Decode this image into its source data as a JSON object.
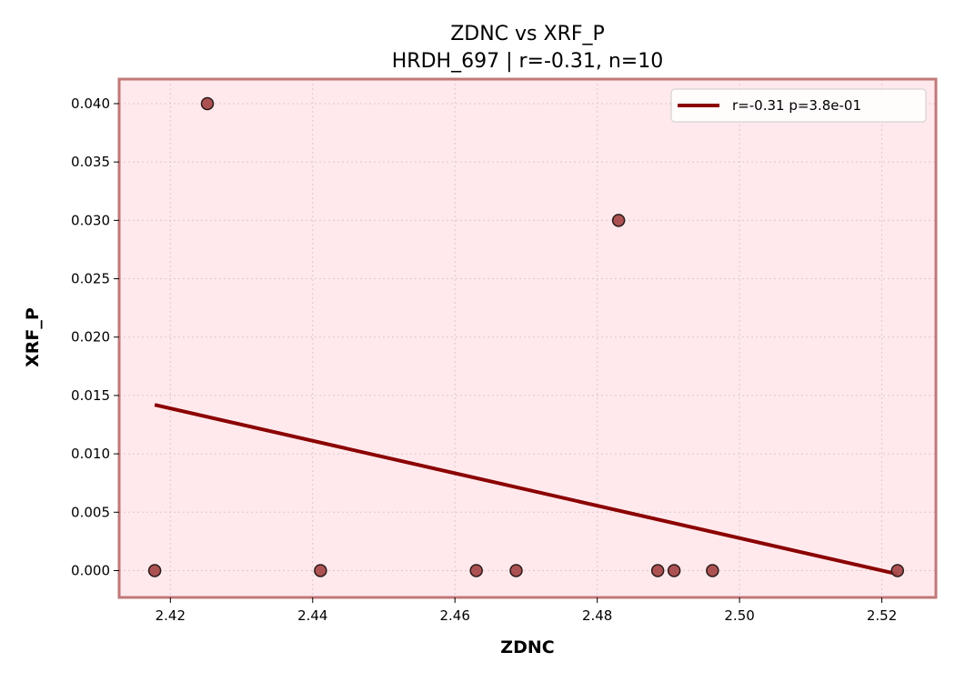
{
  "chart_data": {
    "type": "scatter",
    "title": "ZDNC vs XRF_P",
    "subtitle": "HRDH_697 | r=-0.31, n=10",
    "xlabel": "ZDNC",
    "ylabel": "XRF_P",
    "xlim": [
      2.4128,
      2.5276
    ],
    "ylim": [
      -0.0023,
      0.0421
    ],
    "xticks": [
      2.42,
      2.44,
      2.46,
      2.48,
      2.5,
      2.52
    ],
    "xtick_labels": [
      "2.42",
      "2.44",
      "2.46",
      "2.48",
      "2.50",
      "2.52"
    ],
    "yticks": [
      0.0,
      0.005,
      0.01,
      0.015,
      0.02,
      0.025,
      0.03,
      0.035,
      0.04
    ],
    "ytick_labels": [
      "0.000",
      "0.005",
      "0.010",
      "0.015",
      "0.020",
      "0.025",
      "0.030",
      "0.035",
      "0.040"
    ],
    "grid": true,
    "legend_position": "top-right",
    "points": [
      {
        "x": 2.4178,
        "y": 0.0
      },
      {
        "x": 2.4252,
        "y": 0.04
      },
      {
        "x": 2.4411,
        "y": 0.0
      },
      {
        "x": 2.463,
        "y": 0.0
      },
      {
        "x": 2.4686,
        "y": 0.0
      },
      {
        "x": 2.483,
        "y": 0.03
      },
      {
        "x": 2.4885,
        "y": 0.0
      },
      {
        "x": 2.4908,
        "y": 0.0
      },
      {
        "x": 2.4962,
        "y": 0.0
      },
      {
        "x": 2.5222,
        "y": 0.0
      }
    ],
    "fit_line": {
      "label": "r=-0.31  p=3.8e-01",
      "x": [
        2.4178,
        2.5222
      ],
      "y": [
        0.0142,
        -0.0003
      ]
    },
    "colors": {
      "point_fill": "#a84a4a",
      "point_edge": "#2b1a1a",
      "fit_line": "#8b0000",
      "plot_background": "#ffe9ec",
      "frame": "#c07878",
      "grid": "#dcc8cc"
    }
  }
}
